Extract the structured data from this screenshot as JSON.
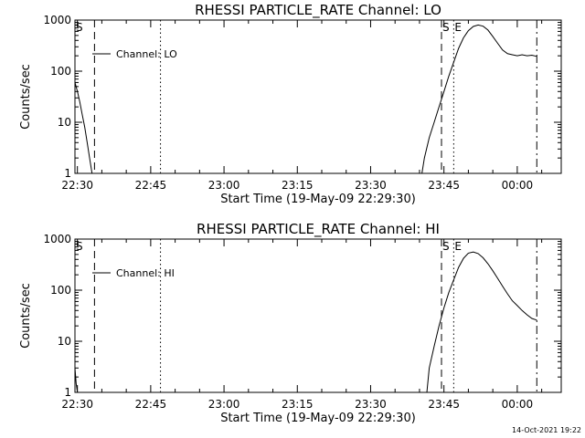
{
  "chart_data": [
    {
      "type": "line",
      "title": "RHESSI PARTICLE_RATE Channel: LO",
      "xlabel": "Start Time (19-May-09 22:29:30)",
      "ylabel": "Counts/sec",
      "y_scale": "log",
      "ylim": [
        1,
        1000
      ],
      "xlim": [
        "22:29:30",
        "00:09:00"
      ],
      "x_ticks": [
        "22:30",
        "22:45",
        "23:00",
        "23:15",
        "23:30",
        "23:45",
        "00:00"
      ],
      "y_ticks": [
        "1",
        "10",
        "100",
        "1000"
      ],
      "legend": {
        "label": "Channel: LO",
        "position": "top-left"
      },
      "markers": [
        {
          "time": "22:29:30",
          "style": "dash-dot",
          "label": "S"
        },
        {
          "time": "22:33:30",
          "style": "dashed",
          "label": ""
        },
        {
          "time": "22:47:00",
          "style": "dotted",
          "label": ""
        },
        {
          "time": "23:44:30",
          "style": "dashed",
          "label": "S"
        },
        {
          "time": "23:47:00",
          "style": "dotted",
          "label": "E"
        },
        {
          "time": "00:04:00",
          "style": "dash-dot",
          "label": ""
        }
      ],
      "series": [
        {
          "name": "Channel: LO",
          "points": [
            [
              "22:29:30",
              60
            ],
            [
              "22:30:00",
              40
            ],
            [
              "22:30:30",
              25
            ],
            [
              "22:31:00",
              14
            ],
            [
              "22:31:30",
              8
            ],
            [
              "22:32:00",
              4
            ],
            [
              "22:32:30",
              2
            ],
            [
              "22:33:00",
              1
            ],
            [
              "23:40:30",
              1
            ],
            [
              "23:41:00",
              2
            ],
            [
              "23:42:00",
              5
            ],
            [
              "23:43:00",
              10
            ],
            [
              "23:44:00",
              20
            ],
            [
              "23:45:00",
              40
            ],
            [
              "23:46:00",
              80
            ],
            [
              "23:47:00",
              150
            ],
            [
              "23:48:00",
              280
            ],
            [
              "23:49:00",
              450
            ],
            [
              "23:50:00",
              620
            ],
            [
              "23:51:00",
              750
            ],
            [
              "23:52:00",
              800
            ],
            [
              "23:53:00",
              760
            ],
            [
              "23:54:00",
              640
            ],
            [
              "23:55:00",
              480
            ],
            [
              "23:56:00",
              350
            ],
            [
              "23:57:00",
              260
            ],
            [
              "23:58:00",
              220
            ],
            [
              "23:59:00",
              210
            ],
            [
              "00:00:00",
              200
            ],
            [
              "00:01:00",
              210
            ],
            [
              "00:02:00",
              200
            ],
            [
              "00:03:00",
              205
            ],
            [
              "00:04:00",
              195
            ]
          ]
        }
      ]
    },
    {
      "type": "line",
      "title": "RHESSI PARTICLE_RATE Channel: HI",
      "xlabel": "Start Time (19-May-09 22:29:30)",
      "ylabel": "Counts/sec",
      "y_scale": "log",
      "ylim": [
        1,
        1000
      ],
      "xlim": [
        "22:29:30",
        "00:09:00"
      ],
      "x_ticks": [
        "22:30",
        "22:45",
        "23:00",
        "23:15",
        "23:30",
        "23:45",
        "00:00"
      ],
      "y_ticks": [
        "1",
        "10",
        "100",
        "1000"
      ],
      "legend": {
        "label": "Channel: HI",
        "position": "top-left"
      },
      "markers": [
        {
          "time": "22:29:30",
          "style": "dash-dot",
          "label": "S"
        },
        {
          "time": "22:33:30",
          "style": "dashed",
          "label": ""
        },
        {
          "time": "22:47:00",
          "style": "dotted",
          "label": ""
        },
        {
          "time": "23:44:30",
          "style": "dashed",
          "label": "S"
        },
        {
          "time": "23:47:00",
          "style": "dotted",
          "label": "E"
        },
        {
          "time": "00:04:00",
          "style": "dash-dot",
          "label": ""
        }
      ],
      "series": [
        {
          "name": "Channel: HI",
          "points": [
            [
              "22:29:30",
              3
            ],
            [
              "22:29:45",
              1.5
            ],
            [
              "22:30:00",
              1
            ],
            [
              "23:41:30",
              1
            ],
            [
              "23:42:00",
              3
            ],
            [
              "23:43:00",
              8
            ],
            [
              "23:44:00",
              20
            ],
            [
              "23:45:00",
              45
            ],
            [
              "23:46:00",
              90
            ],
            [
              "23:47:00",
              160
            ],
            [
              "23:48:00",
              280
            ],
            [
              "23:49:00",
              420
            ],
            [
              "23:50:00",
              530
            ],
            [
              "23:51:00",
              560
            ],
            [
              "23:52:00",
              520
            ],
            [
              "23:53:00",
              430
            ],
            [
              "23:54:00",
              330
            ],
            [
              "23:55:00",
              240
            ],
            [
              "23:56:00",
              170
            ],
            [
              "23:57:00",
              120
            ],
            [
              "23:58:00",
              85
            ],
            [
              "23:59:00",
              62
            ],
            [
              "00:00:00",
              50
            ],
            [
              "00:01:00",
              40
            ],
            [
              "00:02:00",
              33
            ],
            [
              "00:03:00",
              28
            ],
            [
              "00:04:00",
              26
            ]
          ]
        }
      ]
    }
  ],
  "footer": {
    "timestamp": "14-Oct-2021 19:22"
  }
}
